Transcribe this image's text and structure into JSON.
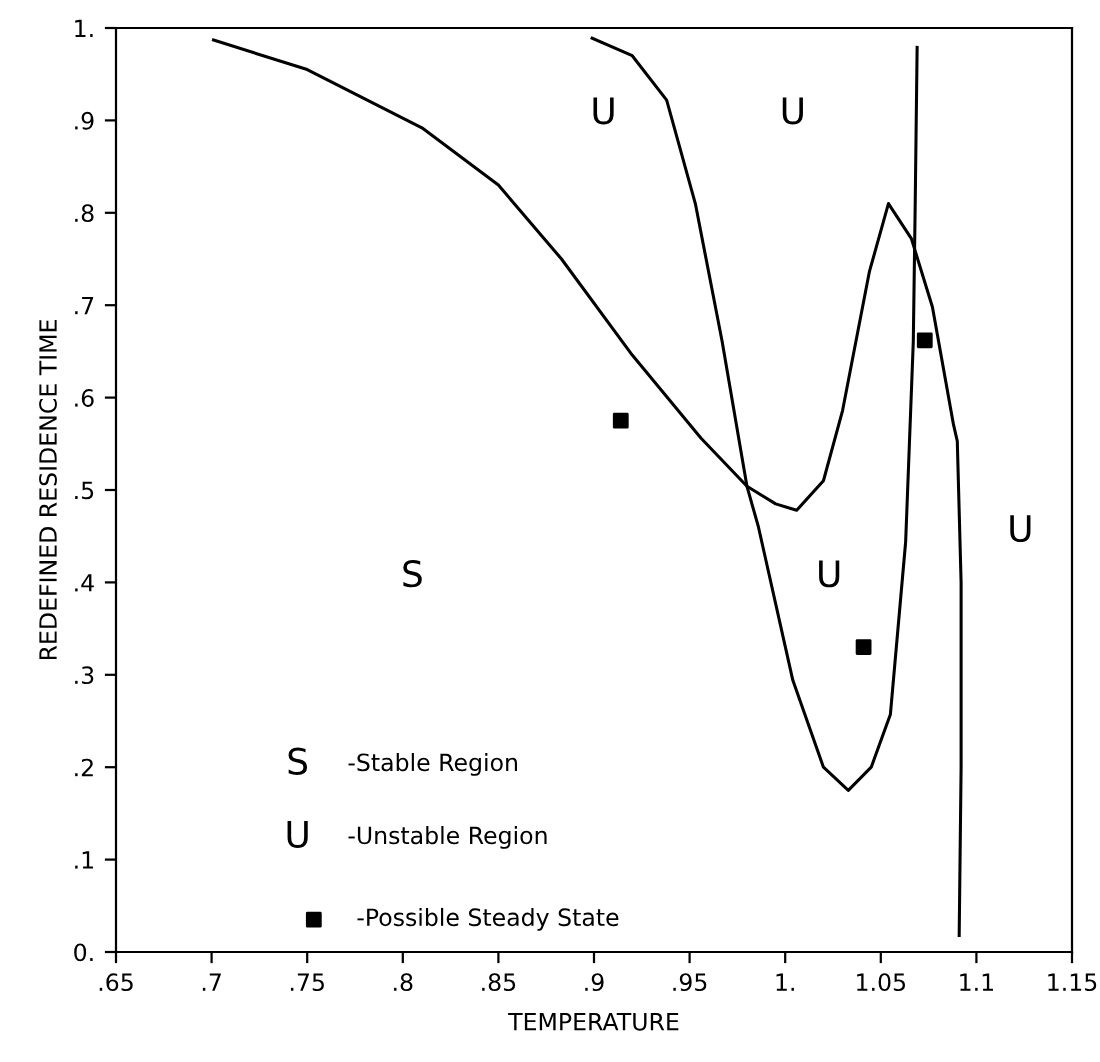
{
  "chart_data": {
    "type": "line",
    "xlabel": "TEMPERATURE",
    "ylabel": "REDEFINED RESIDENCE TIME",
    "xlim": [
      0.65,
      1.15
    ],
    "ylim": [
      0,
      1
    ],
    "xticks": [
      {
        "value": 0.65,
        "label": ".65"
      },
      {
        "value": 0.7,
        "label": ".7"
      },
      {
        "value": 0.75,
        "label": ".75"
      },
      {
        "value": 0.8,
        "label": ".8"
      },
      {
        "value": 0.85,
        "label": ".85"
      },
      {
        "value": 0.9,
        "label": ".9"
      },
      {
        "value": 0.95,
        "label": ".95"
      },
      {
        "value": 1.0,
        "label": "1."
      },
      {
        "value": 1.05,
        "label": "1.05"
      },
      {
        "value": 1.1,
        "label": "1.1"
      },
      {
        "value": 1.15,
        "label": "1.15"
      }
    ],
    "yticks": [
      {
        "value": 0,
        "label": "0."
      },
      {
        "value": 0.1,
        "label": ".1"
      },
      {
        "value": 0.2,
        "label": ".2"
      },
      {
        "value": 0.3,
        "label": ".3"
      },
      {
        "value": 0.4,
        "label": ".4"
      },
      {
        "value": 0.5,
        "label": ".5"
      },
      {
        "value": 0.6,
        "label": ".6"
      },
      {
        "value": 0.7,
        "label": ".7"
      },
      {
        "value": 0.8,
        "label": ".8"
      },
      {
        "value": 0.9,
        "label": ".9"
      },
      {
        "value": 1,
        "label": "1."
      }
    ],
    "grid": false,
    "legend": "bottom left",
    "series": [
      {
        "color": "#000000",
        "marker": "none",
        "x": [
          0.701,
          0.75,
          0.81,
          0.85,
          0.883,
          0.92,
          0.956,
          0.98,
          0.995,
          1.006,
          1.02,
          1.03,
          1.044,
          1.054,
          1.066,
          1.077,
          1.088,
          1.09,
          1.092,
          1.092,
          1.091
        ],
        "values": [
          0.987,
          0.955,
          0.892,
          0.83,
          0.75,
          0.646,
          0.556,
          0.504,
          0.485,
          0.478,
          0.51,
          0.586,
          0.736,
          0.81,
          0.772,
          0.698,
          0.571,
          0.553,
          0.4,
          0.2,
          0.018
        ]
      },
      {
        "color": "#000000",
        "marker": "none",
        "x": [
          0.899,
          0.92,
          0.938,
          0.953,
          0.967,
          0.98,
          0.986,
          1.004,
          1.02,
          1.033,
          1.045,
          1.055,
          1.063,
          1.067,
          1.068,
          1.069
        ],
        "values": [
          0.989,
          0.97,
          0.922,
          0.81,
          0.661,
          0.504,
          0.46,
          0.294,
          0.2,
          0.175,
          0.2,
          0.257,
          0.444,
          0.661,
          0.81,
          0.979
        ]
      },
      {
        "type": "scatter",
        "name": "-Possible Steady State",
        "color": "#000000",
        "marker": "square",
        "x": [
          0.914,
          1.041,
          1.073
        ],
        "values": [
          0.575,
          0.33,
          0.662
        ]
      }
    ],
    "annotations": [
      "U",
      "U",
      "U",
      "U",
      "S",
      "S",
      "-Stable Region",
      "U",
      "-Unstable Region"
    ]
  }
}
